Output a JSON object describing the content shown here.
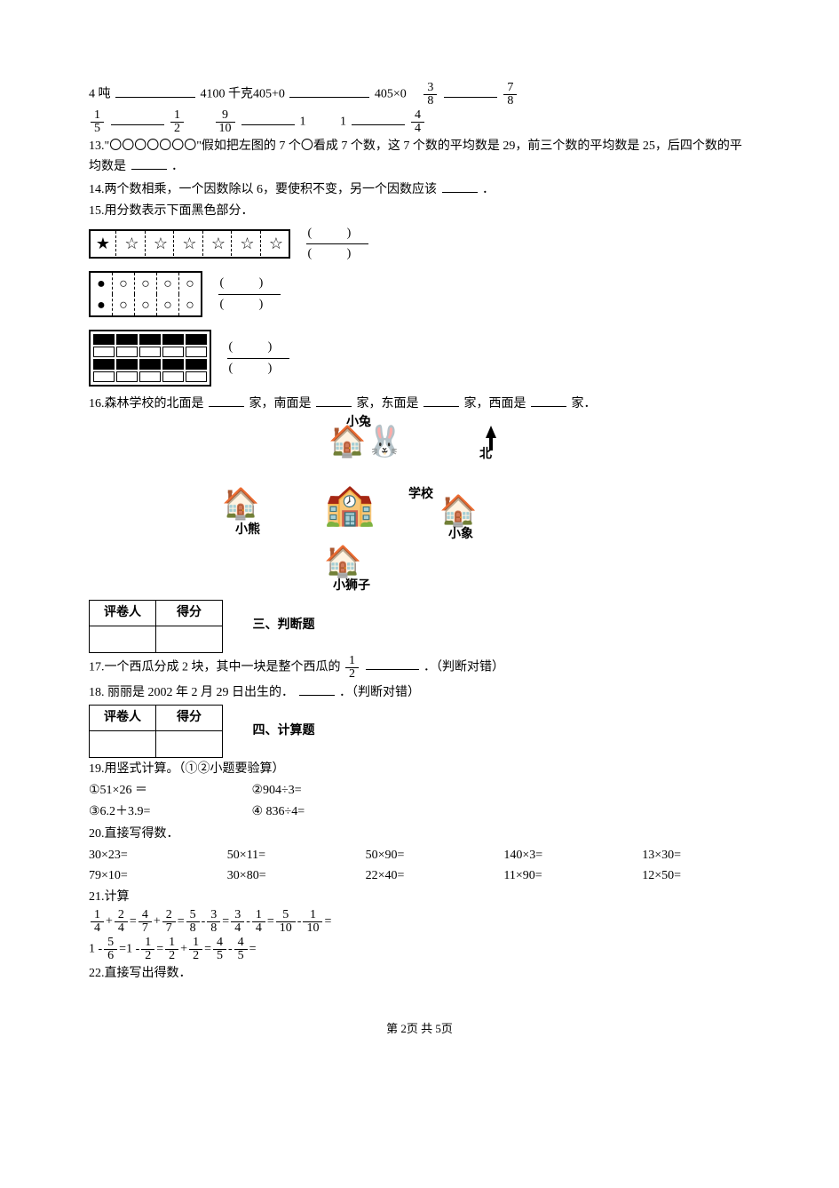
{
  "q12_parts": {
    "a": "4 吨",
    "b": "4100 千克405+0",
    "c": "405×0",
    "f1": {
      "n": "3",
      "d": "8"
    },
    "f2": {
      "n": "7",
      "d": "8"
    },
    "f3": {
      "n": "1",
      "d": "5"
    },
    "f4": {
      "n": "1",
      "d": "2"
    },
    "f5": {
      "n": "9",
      "d": "10"
    },
    "mid": "1",
    "one": "1",
    "f6": {
      "n": "4",
      "d": "4"
    }
  },
  "q13": "13.\"〇〇〇〇〇〇〇\"假如把左图的 7 个〇看成 7 个数，这 7 个数的平均数是 29，前三个数的平均数是 25，后四个数的平均数是",
  "q13_end": "．",
  "q14": "14.两个数相乘，一个因数除以 6，要使积不变，另一个因数应该",
  "q14_end": "．",
  "q15": "15.用分数表示下面黑色部分．",
  "q16": {
    "pre": "16.森林学校的北面是",
    "a": "家，南面是",
    "b": "家，东面是",
    "c": "家，西面是",
    "end": "家．"
  },
  "village_labels": {
    "rabbit": "小兔",
    "school": "学校",
    "bear": "小熊",
    "lion": "小狮子",
    "elephant": "小象",
    "north": "北"
  },
  "grade_table": {
    "h1": "评卷人",
    "h2": "得分"
  },
  "section3": "三、判断题",
  "q17_a": "17.一个西瓜分成 2 块，其中一块是整个西瓜的",
  "q17_f": {
    "n": "1",
    "d": "2"
  },
  "q17_b": "．（判断对错）",
  "q18": "18. 丽丽是 2002 年 2 月 29 日出生的．",
  "q18_b": "．（判断对错）",
  "section4": "四、计算题",
  "q19": {
    "title": "19.用竖式计算。（①②小题要验算）",
    "l1a": "①51×26 ＝",
    "l1b": "②904÷3=",
    "l2a": "③6.2＋3.9=",
    "l2b": "④ 836÷4="
  },
  "q20": {
    "title": "20.直接写得数．",
    "r1": [
      "30×23=",
      "50×11=",
      "50×90=",
      "140×3=",
      "13×30="
    ],
    "r2": [
      "79×10=",
      "30×80=",
      "22×40=",
      "11×90=",
      "12×50="
    ]
  },
  "q21": {
    "title": "21.计算",
    "line1": [
      {
        "n": "1",
        "d": "4"
      },
      "+",
      {
        "n": "2",
        "d": "4"
      },
      "=",
      {
        "n": "4",
        "d": "7"
      },
      "+",
      {
        "n": "2",
        "d": "7"
      },
      "=",
      {
        "n": "5",
        "d": "8"
      },
      "-",
      {
        "n": "3",
        "d": "8"
      },
      "=",
      {
        "n": "3",
        "d": "4"
      },
      "-",
      {
        "n": "1",
        "d": "4"
      },
      "=",
      {
        "n": "5",
        "d": "10"
      },
      "-",
      {
        "n": "1",
        "d": "10"
      },
      "="
    ],
    "line2": [
      "1 -",
      {
        "n": "5",
        "d": "6"
      },
      "=",
      "1 -",
      {
        "n": "1",
        "d": "2"
      },
      "=",
      {
        "n": "1",
        "d": "2"
      },
      "+",
      {
        "n": "1",
        "d": "2"
      },
      "=",
      {
        "n": "4",
        "d": "5"
      },
      "-",
      {
        "n": "4",
        "d": "5"
      },
      "="
    ]
  },
  "q22": "22.直接写出得数．",
  "footer": "第 2页 共 5页"
}
